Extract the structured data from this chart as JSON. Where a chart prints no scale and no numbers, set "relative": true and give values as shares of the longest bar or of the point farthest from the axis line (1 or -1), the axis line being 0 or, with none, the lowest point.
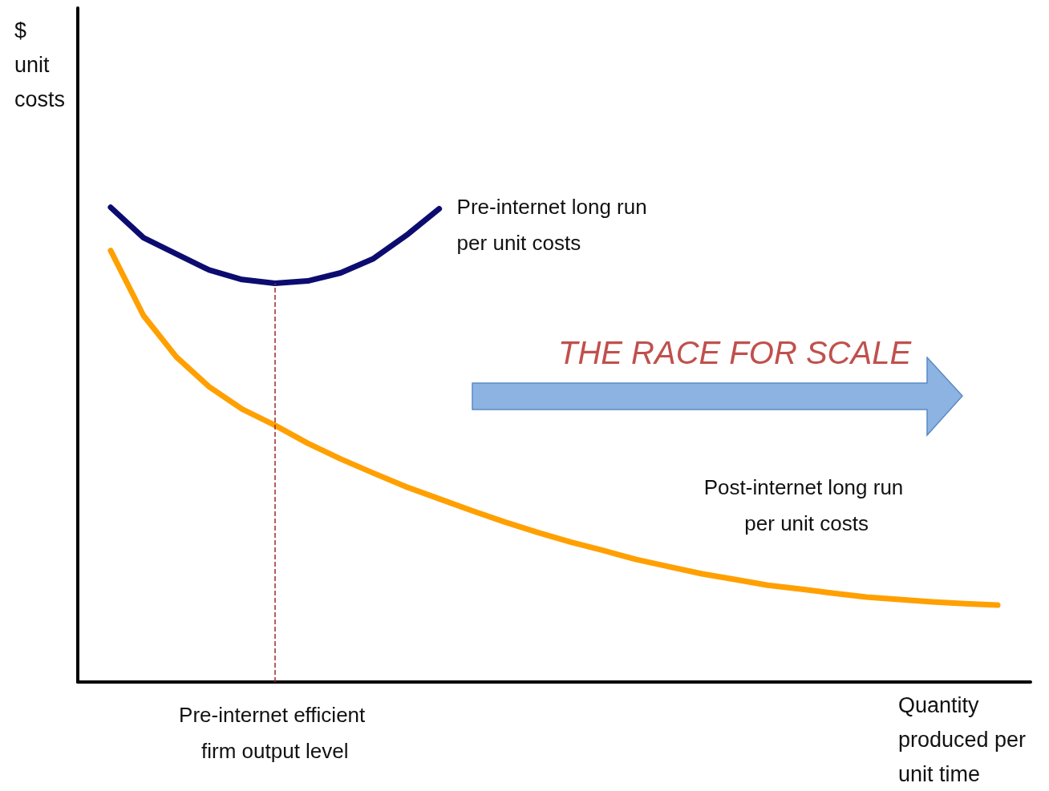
{
  "chart_data": {
    "type": "line",
    "relative": true,
    "xlabel": "Quantity produced per unit time",
    "ylabel": "$ unit costs",
    "categories": [
      null,
      null,
      null,
      null,
      null,
      null,
      null,
      null,
      null,
      null,
      null,
      null,
      null,
      null,
      null,
      null,
      null,
      null,
      null,
      null,
      null,
      null,
      null,
      null,
      null,
      null,
      null,
      null,
      null,
      null
    ],
    "grid": false,
    "legend": false,
    "marker": "none",
    "line_style": "solid",
    "series": [
      {
        "name": "Pre-internet long run per unit costs",
        "color": "#0c0c70",
        "values": [
          null,
          1.0,
          0.936,
          0.902,
          0.868,
          0.848,
          0.84,
          0.845,
          0.862,
          0.892,
          0.941,
          0.997,
          null,
          null,
          null,
          null,
          null,
          null,
          null,
          null,
          null,
          null,
          null,
          null,
          null,
          null,
          null,
          null,
          null,
          null
        ]
      },
      {
        "name": "Post-internet long run per unit costs",
        "color": "#ffa000",
        "values": [
          null,
          0.909,
          0.772,
          0.685,
          0.622,
          0.575,
          0.541,
          0.503,
          0.47,
          0.44,
          0.411,
          0.386,
          0.361,
          0.337,
          0.315,
          0.295,
          0.277,
          0.258,
          0.243,
          0.228,
          0.216,
          0.204,
          0.196,
          0.187,
          0.179,
          0.174,
          0.169,
          0.165,
          0.162,
          null
        ]
      }
    ],
    "annotations": [
      "THE RACE FOR SCALE",
      "Pre-internet efficient firm output level"
    ]
  }
}
